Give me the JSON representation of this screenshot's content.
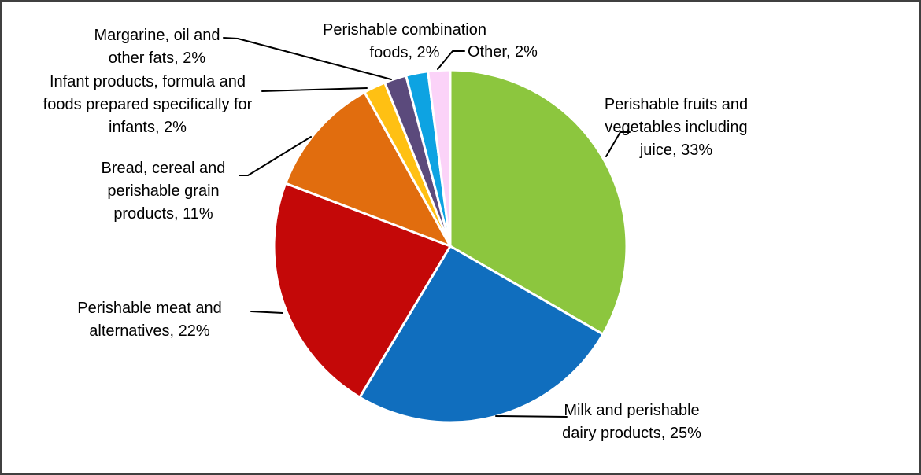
{
  "frame": {
    "background_color": "#ffffff",
    "border_color": "#404040"
  },
  "chart_data": {
    "type": "pie",
    "title": "",
    "legend_position": "none",
    "label_style": "category name + percentage with leader lines",
    "start_angle_deg": 0,
    "direction": "clockwise",
    "categories": [
      "Perishable fruits and vegetables including juice",
      "Milk and perishable dairy products",
      "Perishable meat and alternatives",
      "Bread, cereal and perishable grain products",
      "Infant products, formula and foods prepared specifically for infants",
      "Margarine, oil and other fats",
      "Perishable combination foods",
      "Other"
    ],
    "values": [
      33,
      25,
      22,
      11,
      2,
      2,
      2,
      2
    ],
    "unit": "%",
    "slices": [
      {
        "id": "fruits",
        "label": "Perishable fruits and vegetables including juice",
        "value_pct": 33,
        "color": "#8CC63E",
        "label_lines": [
          "Perishable fruits and",
          "vegetables including",
          "juice, 33%"
        ],
        "has_leader_line": true
      },
      {
        "id": "milk",
        "label": "Milk and perishable dairy products",
        "value_pct": 25,
        "color": "#106EBE",
        "label_lines": [
          "Milk and perishable",
          "dairy products, 25%"
        ],
        "has_leader_line": true
      },
      {
        "id": "meat",
        "label": "Perishable meat and alternatives",
        "value_pct": 22,
        "color": "#C40808",
        "label_lines": [
          "Perishable meat and",
          "alternatives, 22%"
        ],
        "has_leader_line": true
      },
      {
        "id": "bread",
        "label": "Bread, cereal and perishable grain products",
        "value_pct": 11,
        "color": "#E16D0E",
        "label_lines": [
          "Bread, cereal and",
          "perishable grain",
          "products, 11%"
        ],
        "has_leader_line": true
      },
      {
        "id": "infant",
        "label": "Infant products, formula and foods prepared specifically for infants",
        "value_pct": 2,
        "color": "#FFC013",
        "label_lines": [
          "Infant products, formula and",
          "foods prepared specifically for",
          "infants, 2%"
        ],
        "has_leader_line": true
      },
      {
        "id": "margarine",
        "label": "Margarine, oil and other fats",
        "value_pct": 2,
        "color": "#5B4A7C",
        "label_lines": [
          "Margarine, oil and",
          "other fats, 2%"
        ],
        "has_leader_line": true
      },
      {
        "id": "combination",
        "label": "Perishable combination foods",
        "value_pct": 2,
        "color": "#0DA3E2",
        "label_lines": [
          "Perishable combination",
          "foods, 2%"
        ],
        "has_leader_line": false
      },
      {
        "id": "other",
        "label": "Other",
        "value_pct": 2,
        "color": "#FBD3F8",
        "label_lines": [
          "Other, 2%"
        ],
        "has_leader_line": true
      }
    ]
  }
}
